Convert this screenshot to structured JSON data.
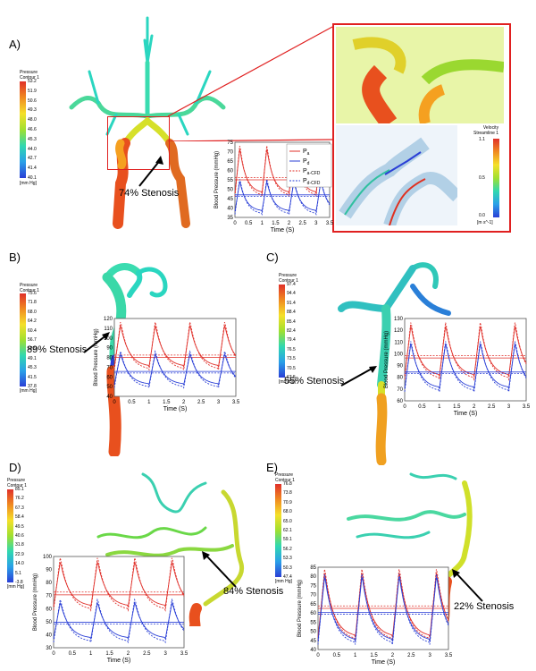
{
  "panels": {
    "A": {
      "label": "A)",
      "colorbar": {
        "title1": "Pressure",
        "title2": "Contour 1",
        "unit": "[mm Hg]",
        "ticks": [
          "53.2",
          "51.9",
          "50.6",
          "49.3",
          "48.0",
          "46.6",
          "45.3",
          "44.0",
          "42.7",
          "41.4",
          "40.1"
        ]
      },
      "stenosis": "74% Stenosis",
      "chart": {
        "ylabel": "Blood Pressure (mmHg)",
        "xlabel": "Time (S)",
        "yticks": [
          "75",
          "70",
          "65",
          "60",
          "55",
          "50",
          "45",
          "40",
          "35"
        ],
        "xticks": [
          "0",
          "0.5",
          "1",
          "1.5",
          "2",
          "2.5",
          "3",
          "3.5"
        ],
        "legend": [
          {
            "main": "P",
            "sub": "a"
          },
          {
            "main": "P",
            "sub": "d"
          },
          {
            "main": "P",
            "sub": "a-CFD"
          },
          {
            "main": "P",
            "sub": "d-CFD"
          }
        ]
      },
      "velocity_bar": {
        "title1": "Velocity",
        "title2": "Streamline 1",
        "max": "1.1",
        "mid": "0.5",
        "min": "0.0",
        "unit": "[m s^-1]"
      }
    },
    "B": {
      "label": "B)",
      "colorbar": {
        "title1": "Pressure",
        "title2": "Contour 1",
        "unit": "[mm Hg]",
        "ticks": [
          "75.6",
          "71.8",
          "68.0",
          "64.2",
          "60.4",
          "56.7",
          "52.9",
          "49.1",
          "45.3",
          "41.5",
          "37.8"
        ]
      },
      "stenosis": "89% Stenosis",
      "chart": {
        "ylabel": "Blood Pressure (mmHg)",
        "xlabel": "Time (S)",
        "yticks": [
          "120",
          "110",
          "100",
          "90",
          "80",
          "70",
          "60",
          "50",
          "40"
        ],
        "xticks": [
          "0",
          "0.5",
          "1",
          "1.5",
          "2",
          "2.5",
          "3",
          "3.5"
        ]
      }
    },
    "C": {
      "label": "C)",
      "colorbar": {
        "title1": "Pressure",
        "title2": "Contour 1",
        "unit": "[mm Hg]",
        "ticks": [
          "97.4",
          "94.4",
          "91.4",
          "88.4",
          "85.4",
          "82.4",
          "79.4",
          "76.5",
          "73.5",
          "70.5",
          "67.5"
        ]
      },
      "stenosis": "55% Stenosis",
      "chart": {
        "ylabel": "Blood Pressure (mmHg)",
        "xlabel": "Time (S)",
        "yticks": [
          "130",
          "120",
          "110",
          "100",
          "90",
          "80",
          "70",
          "60"
        ],
        "xticks": [
          "0",
          "0.5",
          "1",
          "1.5",
          "2",
          "2.5",
          "3",
          "3.5"
        ]
      }
    },
    "D": {
      "label": "D)",
      "colorbar": {
        "title1": "Pressure",
        "title2": "Contour 1",
        "unit": "[mm Hg]",
        "ticks": [
          "85.1",
          "76.2",
          "67.3",
          "58.4",
          "49.5",
          "40.6",
          "31.8",
          "22.9",
          "14.0",
          "5.1",
          "-3.8"
        ]
      },
      "stenosis": "84% Stenosis",
      "chart": {
        "ylabel": "Blood Pressure (mmHg)",
        "xlabel": "Time (S)",
        "yticks": [
          "100",
          "90",
          "80",
          "70",
          "60",
          "50",
          "40",
          "30"
        ],
        "xticks": [
          "0",
          "0.5",
          "1",
          "1.5",
          "2",
          "2.5",
          "3",
          "3.5"
        ]
      }
    },
    "E": {
      "label": "E)",
      "colorbar": {
        "title1": "Pressure",
        "title2": "Contour 1",
        "unit": "[mm Hg]",
        "ticks": [
          "76.8",
          "73.8",
          "70.9",
          "68.0",
          "65.0",
          "62.1",
          "59.1",
          "56.2",
          "53.3",
          "50.3",
          "47.4"
        ]
      },
      "stenosis": "22% Stenosis",
      "chart": {
        "ylabel": "Blood Pressure (mmHg)",
        "xlabel": "Time (S)",
        "yticks": [
          "85",
          "80",
          "75",
          "70",
          "65",
          "60",
          "55",
          "50",
          "45",
          "40"
        ],
        "xticks": [
          "0",
          "0.5",
          "1",
          "1.5",
          "2",
          "2.5",
          "3",
          "3.5"
        ]
      }
    }
  },
  "colors": {
    "proximal": "#e0302a",
    "distal": "#2a3fd6",
    "vessel_hot": "#e8501e",
    "vessel_mid": "#b5d62a",
    "vessel_cool": "#2ad6c0",
    "inset_border": "#e02020"
  }
}
